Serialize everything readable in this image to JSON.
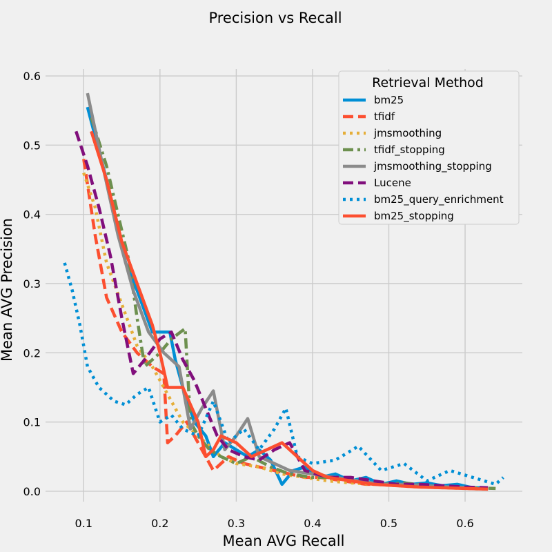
{
  "chart_data": {
    "type": "line",
    "title": "Precision vs Recall",
    "xlabel": "Mean AVG Recall",
    "ylabel": "Mean AVG Precision",
    "xlim": [
      0.05,
      0.675
    ],
    "ylim": [
      -0.015,
      0.61
    ],
    "xticks": [
      0.1,
      0.2,
      0.3,
      0.4,
      0.5,
      0.6
    ],
    "yticks": [
      0.0,
      0.1,
      0.2,
      0.3,
      0.4,
      0.5,
      0.6
    ],
    "grid": true,
    "legend": {
      "title": "Retrieval Method",
      "placement": "top-right"
    },
    "series": [
      {
        "name": "bm25",
        "color": "#008fd5",
        "dash": "solid",
        "x": [
          0.105,
          0.13,
          0.155,
          0.17,
          0.19,
          0.213,
          0.22,
          0.23,
          0.245,
          0.26,
          0.27,
          0.285,
          0.3,
          0.315,
          0.33,
          0.345,
          0.36,
          0.375,
          0.39,
          0.41,
          0.43,
          0.45,
          0.47,
          0.49,
          0.51,
          0.53,
          0.55,
          0.57,
          0.59,
          0.61,
          0.625
        ],
        "y": [
          0.555,
          0.45,
          0.33,
          0.29,
          0.23,
          0.23,
          0.19,
          0.15,
          0.1,
          0.08,
          0.05,
          0.07,
          0.06,
          0.05,
          0.06,
          0.045,
          0.01,
          0.03,
          0.035,
          0.02,
          0.025,
          0.015,
          0.02,
          0.01,
          0.015,
          0.01,
          0.012,
          0.008,
          0.01,
          0.005,
          0.005
        ]
      },
      {
        "name": "tfidf",
        "color": "#fc4f30",
        "dash": "dashed",
        "x": [
          0.1,
          0.115,
          0.13,
          0.15,
          0.17,
          0.19,
          0.205,
          0.21,
          0.22,
          0.235,
          0.255,
          0.27,
          0.29,
          0.31,
          0.33,
          0.35,
          0.37,
          0.39,
          0.41,
          0.44,
          0.47,
          0.5,
          0.53,
          0.56,
          0.59,
          0.62
        ],
        "y": [
          0.48,
          0.37,
          0.28,
          0.23,
          0.2,
          0.18,
          0.17,
          0.07,
          0.08,
          0.1,
          0.06,
          0.03,
          0.05,
          0.04,
          0.035,
          0.03,
          0.025,
          0.02,
          0.02,
          0.015,
          0.01,
          0.01,
          0.008,
          0.006,
          0.005,
          0.004
        ]
      },
      {
        "name": "jmsmoothing",
        "color": "#e5ae38",
        "dash": "dotted",
        "x": [
          0.1,
          0.115,
          0.13,
          0.15,
          0.17,
          0.19,
          0.21,
          0.23,
          0.26,
          0.28,
          0.3,
          0.33,
          0.36,
          0.39,
          0.42,
          0.45,
          0.48,
          0.51,
          0.54,
          0.57,
          0.6,
          0.63
        ],
        "y": [
          0.46,
          0.41,
          0.33,
          0.27,
          0.21,
          0.18,
          0.14,
          0.1,
          0.07,
          0.05,
          0.04,
          0.035,
          0.025,
          0.02,
          0.015,
          0.012,
          0.01,
          0.008,
          0.006,
          0.005,
          0.004,
          0.003
        ]
      },
      {
        "name": "tfidf_stopping",
        "color": "#6d904f",
        "dash": "dashdot",
        "x": [
          0.11,
          0.13,
          0.145,
          0.16,
          0.17,
          0.18,
          0.2,
          0.215,
          0.233,
          0.24,
          0.25,
          0.265,
          0.28,
          0.3,
          0.32,
          0.345,
          0.37,
          0.4,
          0.43,
          0.46,
          0.49,
          0.52,
          0.55,
          0.58,
          0.61,
          0.64
        ],
        "y": [
          0.54,
          0.47,
          0.4,
          0.33,
          0.25,
          0.18,
          0.2,
          0.22,
          0.235,
          0.1,
          0.08,
          0.06,
          0.05,
          0.04,
          0.05,
          0.035,
          0.025,
          0.02,
          0.02,
          0.015,
          0.01,
          0.012,
          0.008,
          0.005,
          0.005,
          0.004
        ]
      },
      {
        "name": "jmsmoothing_stopping",
        "color": "#8b8b8b",
        "dash": "solid",
        "x": [
          0.105,
          0.125,
          0.145,
          0.165,
          0.185,
          0.205,
          0.225,
          0.24,
          0.255,
          0.27,
          0.285,
          0.3,
          0.315,
          0.33,
          0.35,
          0.37,
          0.4,
          0.43,
          0.46,
          0.49,
          0.52,
          0.55,
          0.58,
          0.61
        ],
        "y": [
          0.575,
          0.47,
          0.37,
          0.29,
          0.23,
          0.2,
          0.18,
          0.09,
          0.12,
          0.145,
          0.06,
          0.08,
          0.105,
          0.05,
          0.04,
          0.03,
          0.025,
          0.02,
          0.015,
          0.01,
          0.01,
          0.008,
          0.006,
          0.005
        ]
      },
      {
        "name": "Lucene",
        "color": "#810f7c",
        "dash": "dashed",
        "x": [
          0.09,
          0.105,
          0.12,
          0.135,
          0.15,
          0.165,
          0.18,
          0.2,
          0.215,
          0.23,
          0.245,
          0.26,
          0.275,
          0.29,
          0.31,
          0.33,
          0.35,
          0.37,
          0.39,
          0.42,
          0.45,
          0.48,
          0.51,
          0.54,
          0.57,
          0.6,
          0.63
        ],
        "y": [
          0.52,
          0.47,
          0.41,
          0.34,
          0.25,
          0.17,
          0.19,
          0.22,
          0.23,
          0.19,
          0.16,
          0.12,
          0.08,
          0.06,
          0.05,
          0.045,
          0.06,
          0.07,
          0.03,
          0.02,
          0.02,
          0.015,
          0.01,
          0.01,
          0.008,
          0.006,
          0.005
        ]
      },
      {
        "name": "bm25_query_enrichment",
        "color": "#008fd5",
        "dash": "dotted",
        "x": [
          0.075,
          0.085,
          0.095,
          0.105,
          0.12,
          0.14,
          0.155,
          0.17,
          0.185,
          0.2,
          0.215,
          0.23,
          0.25,
          0.27,
          0.29,
          0.31,
          0.33,
          0.35,
          0.365,
          0.38,
          0.4,
          0.43,
          0.46,
          0.49,
          0.52,
          0.55,
          0.58,
          0.61,
          0.64,
          0.65
        ],
        "y": [
          0.33,
          0.29,
          0.24,
          0.18,
          0.15,
          0.13,
          0.125,
          0.14,
          0.15,
          0.1,
          0.11,
          0.09,
          0.08,
          0.13,
          0.07,
          0.09,
          0.06,
          0.09,
          0.12,
          0.05,
          0.04,
          0.045,
          0.065,
          0.03,
          0.04,
          0.015,
          0.03,
          0.02,
          0.01,
          0.02
        ]
      },
      {
        "name": "bm25_stopping",
        "color": "#fc4f30",
        "dash": "solid",
        "x": [
          0.11,
          0.13,
          0.15,
          0.17,
          0.19,
          0.2,
          0.21,
          0.23,
          0.25,
          0.26,
          0.27,
          0.28,
          0.3,
          0.32,
          0.34,
          0.36,
          0.38,
          0.4,
          0.42,
          0.45,
          0.48,
          0.51,
          0.54,
          0.57,
          0.6,
          0.63
        ],
        "y": [
          0.52,
          0.45,
          0.36,
          0.3,
          0.24,
          0.2,
          0.15,
          0.15,
          0.1,
          0.05,
          0.06,
          0.08,
          0.07,
          0.05,
          0.06,
          0.07,
          0.05,
          0.03,
          0.02,
          0.015,
          0.01,
          0.008,
          0.006,
          0.005,
          0.004,
          0.003
        ]
      }
    ]
  }
}
